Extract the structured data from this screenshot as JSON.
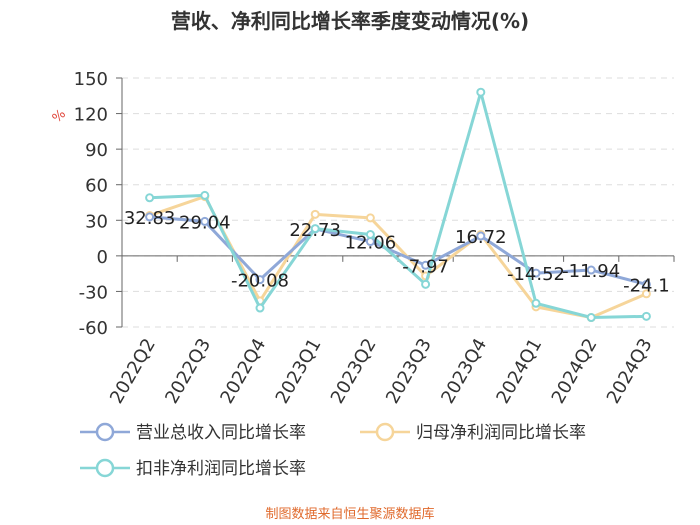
{
  "chart_data": {
    "type": "line",
    "title": "营收、净利同比增长率季度变动情况(%)",
    "ylabel": "%",
    "source": "制图数据来自恒生聚源数据库",
    "categories": [
      "2022Q2",
      "2022Q3",
      "2022Q4",
      "2023Q1",
      "2023Q2",
      "2023Q3",
      "2023Q4",
      "2024Q1",
      "2024Q2",
      "2024Q3"
    ],
    "ylim": [
      -60,
      150
    ],
    "yticks": [
      150,
      120,
      90,
      60,
      30,
      0,
      -30,
      -60
    ],
    "grid": true,
    "legend_position": "bottom",
    "series": [
      {
        "name": "营业总收入同比增长率",
        "color": "#8fa8d8",
        "values": [
          32.83,
          29.04,
          -20.08,
          22.73,
          12.06,
          -7.97,
          16.72,
          -14.52,
          -11.94,
          -24.1
        ],
        "labels": [
          "32.83",
          "29.04",
          "-20.08",
          "22.73",
          "12.06",
          "-7.97",
          "16.72",
          "-14.52",
          "-11.94",
          "-24.1"
        ]
      },
      {
        "name": "归母净利润同比增长率",
        "color": "#f6d59a",
        "values": [
          34,
          50,
          -38,
          35,
          32,
          -17,
          18,
          -43,
          -52,
          -32
        ]
      },
      {
        "name": "扣非净利润同比增长率",
        "color": "#86d6d6",
        "values": [
          49,
          51,
          -44,
          23,
          18,
          -24,
          138,
          -40,
          -52,
          -51
        ]
      }
    ]
  }
}
